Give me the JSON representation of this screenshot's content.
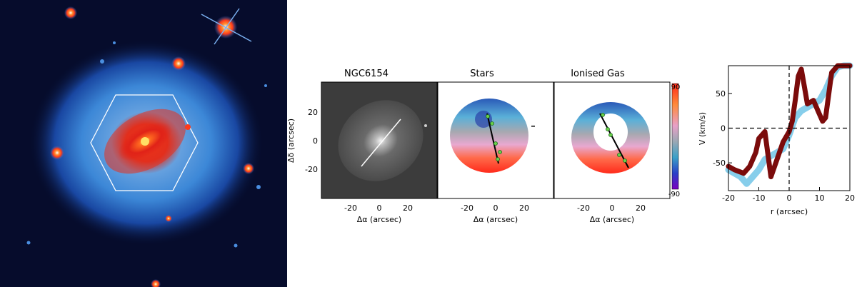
{
  "panels": {
    "image": {
      "title": "NGC6154"
    },
    "stars": {
      "title": "Stars"
    },
    "gas": {
      "title": "Ionised Gas"
    }
  },
  "axes": {
    "dalpha_label": "Δα (arcsec)",
    "ddelta_label": "Δδ (arcsec)",
    "map_xticks": [
      "-20",
      "0",
      "20"
    ],
    "map_yticks": [
      "20",
      "0",
      "-20"
    ]
  },
  "colorbar": {
    "max_label": "90",
    "min_label": "-90"
  },
  "chart_data": {
    "type": "area",
    "xlabel": "r (arcsec)",
    "ylabel": "V (km/s)",
    "xlim": [
      -20,
      20
    ],
    "ylim": [
      -90,
      90
    ],
    "xticks": [
      "-20",
      "-10",
      "0",
      "10",
      "20"
    ],
    "yticks": [
      "50",
      "0",
      "-50"
    ],
    "series": [
      {
        "color": "#87ceeb",
        "r": [
          -20,
          -16,
          -14,
          -12,
          -10,
          -8,
          -6,
          -4,
          -2,
          0,
          2,
          4,
          6,
          8,
          10,
          12,
          14,
          16,
          18,
          20
        ],
        "v": [
          -60,
          -70,
          -80,
          -70,
          -60,
          -45,
          -40,
          -35,
          -30,
          -10,
          15,
          25,
          30,
          35,
          40,
          55,
          75,
          88,
          90,
          90
        ]
      },
      {
        "color": "#7b0b0b",
        "r": [
          -20,
          -18,
          -15,
          -13,
          -11,
          -10,
          -8,
          -6,
          -4,
          -2,
          0,
          1,
          2,
          3,
          4,
          5,
          6,
          8,
          10,
          11,
          12,
          14,
          16,
          18,
          20
        ],
        "v": [
          -55,
          -60,
          -65,
          -55,
          -35,
          -15,
          -5,
          -70,
          -45,
          -20,
          -5,
          10,
          40,
          75,
          85,
          60,
          35,
          40,
          20,
          10,
          15,
          80,
          90,
          90,
          90
        ]
      }
    ]
  }
}
